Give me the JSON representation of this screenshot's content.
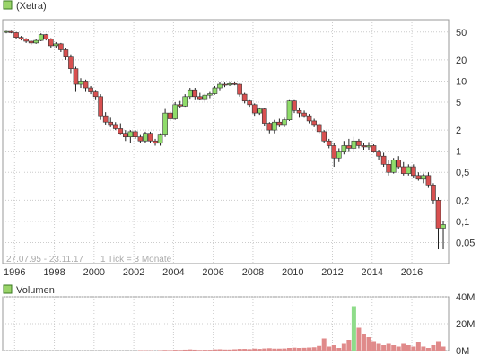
{
  "legend_top": {
    "label": "(Xetra)",
    "color": "#9ad46a"
  },
  "legend_bottom": {
    "label": "Volumen",
    "color": "#9ad46a"
  },
  "colors": {
    "up": "#8fdc6a",
    "down": "#d85050",
    "wick": "#202020",
    "grid": "#cccccc",
    "vol_red": "#e08a8a",
    "vol_green": "#8fdc8a"
  },
  "chart_data": [
    {
      "type": "candlestick",
      "scale": "log",
      "period_label": "27.07.95 - 23.11.17",
      "tick_note": "1 Tick = 3 Monate",
      "x_tick_labels": [
        "1996",
        "1998",
        "2000",
        "2002",
        "2004",
        "2006",
        "2008",
        "2010",
        "2012",
        "2014",
        "2016"
      ],
      "y_tick_labels": [
        "50",
        "20",
        "10",
        "5",
        "2",
        "1",
        "0,5",
        "0,2",
        "0,1",
        "0,05"
      ],
      "ylim": [
        0.025,
        75
      ],
      "grid": true,
      "candles": [
        [
          1995.58,
          50,
          52,
          48,
          51
        ],
        [
          1995.83,
          51,
          52,
          48,
          49
        ],
        [
          1996.08,
          49,
          50,
          40,
          42
        ],
        [
          1996.33,
          42,
          44,
          38,
          40
        ],
        [
          1996.58,
          40,
          41,
          35,
          37
        ],
        [
          1996.83,
          37,
          38,
          33,
          35
        ],
        [
          1997.08,
          35,
          40,
          34,
          38
        ],
        [
          1997.33,
          38,
          48,
          37,
          46
        ],
        [
          1997.58,
          46,
          47,
          38,
          40
        ],
        [
          1997.83,
          40,
          41,
          30,
          32
        ],
        [
          1998.08,
          32,
          36,
          30,
          34
        ],
        [
          1998.33,
          34,
          35,
          26,
          28
        ],
        [
          1998.58,
          28,
          30,
          20,
          22
        ],
        [
          1998.83,
          22,
          24,
          13,
          15
        ],
        [
          1999.08,
          15,
          16,
          7,
          9
        ],
        [
          1999.33,
          9,
          11,
          8,
          10
        ],
        [
          1999.58,
          10,
          10.5,
          7,
          8
        ],
        [
          1999.83,
          8,
          8.5,
          6.5,
          7
        ],
        [
          2000.08,
          7,
          7.5,
          5.5,
          6
        ],
        [
          2000.33,
          6,
          6.5,
          2.8,
          3.2
        ],
        [
          2000.58,
          3.2,
          3.6,
          2.4,
          2.6
        ],
        [
          2000.83,
          2.6,
          3,
          2.2,
          2.4
        ],
        [
          2001.08,
          2.4,
          2.6,
          2,
          2.1
        ],
        [
          2001.33,
          2.1,
          2.5,
          1.7,
          1.8
        ],
        [
          2001.58,
          1.8,
          2,
          1.4,
          1.6
        ],
        [
          2001.83,
          1.6,
          2,
          1.3,
          1.9
        ],
        [
          2002.08,
          1.9,
          2,
          1.5,
          1.6
        ],
        [
          2002.33,
          1.6,
          1.7,
          1.3,
          1.4
        ],
        [
          2002.58,
          1.4,
          1.9,
          1.3,
          1.8
        ],
        [
          2002.83,
          1.8,
          1.9,
          1.3,
          1.4
        ],
        [
          2003.08,
          1.4,
          1.5,
          1.2,
          1.3
        ],
        [
          2003.33,
          1.3,
          1.8,
          1.2,
          1.7
        ],
        [
          2003.58,
          1.7,
          4,
          1.6,
          3.5
        ],
        [
          2003.83,
          3.5,
          3.7,
          2.7,
          2.9
        ],
        [
          2004.08,
          2.9,
          5,
          2.8,
          4.6
        ],
        [
          2004.33,
          4.6,
          5.2,
          4.1,
          4.4
        ],
        [
          2004.58,
          4.4,
          6.5,
          4.3,
          6
        ],
        [
          2004.83,
          6,
          8,
          5.6,
          7.5
        ],
        [
          2005.08,
          7.5,
          8,
          5.5,
          6
        ],
        [
          2005.33,
          6,
          6.8,
          5.3,
          5.6
        ],
        [
          2005.58,
          5.6,
          6.6,
          4.9,
          6.3
        ],
        [
          2005.83,
          6.3,
          7,
          5.7,
          6.6
        ],
        [
          2006.08,
          6.6,
          8.5,
          6.4,
          8
        ],
        [
          2006.33,
          8,
          9.6,
          7.4,
          9
        ],
        [
          2006.58,
          9,
          9.5,
          8.2,
          8.8
        ],
        [
          2006.83,
          8.8,
          9.5,
          8.5,
          9.2
        ],
        [
          2007.08,
          9.2,
          9.6,
          8.7,
          9
        ],
        [
          2007.33,
          9,
          9.2,
          6,
          6.5
        ],
        [
          2007.58,
          6.5,
          6.8,
          4.8,
          5.2
        ],
        [
          2007.83,
          5.2,
          5.5,
          4.3,
          4.6
        ],
        [
          2008.08,
          4.6,
          4.8,
          3.2,
          3.5
        ],
        [
          2008.33,
          3.5,
          4.2,
          3.3,
          4
        ],
        [
          2008.58,
          4,
          4.1,
          2.3,
          2.5
        ],
        [
          2008.83,
          2.5,
          2.6,
          1.8,
          2
        ],
        [
          2009.08,
          2,
          2.8,
          1.8,
          2.6
        ],
        [
          2009.33,
          2.6,
          2.9,
          2.2,
          2.4
        ],
        [
          2009.58,
          2.4,
          3,
          2.2,
          2.8
        ],
        [
          2009.83,
          2.8,
          5.5,
          2.7,
          5.2
        ],
        [
          2010.08,
          5.2,
          5.5,
          3.5,
          3.8
        ],
        [
          2010.33,
          3.8,
          4.2,
          3,
          3.5
        ],
        [
          2010.58,
          3.5,
          3.8,
          3,
          3.2
        ],
        [
          2010.83,
          3.2,
          3.4,
          2.5,
          2.7
        ],
        [
          2011.08,
          2.7,
          2.9,
          2.2,
          2.4
        ],
        [
          2011.33,
          2.4,
          2.5,
          1.8,
          1.9
        ],
        [
          2011.58,
          1.9,
          2,
          1.3,
          1.4
        ],
        [
          2011.83,
          1.4,
          1.5,
          1.1,
          1.2
        ],
        [
          2012.08,
          1.2,
          1.3,
          0.6,
          0.8
        ],
        [
          2012.33,
          0.8,
          1.1,
          0.7,
          1
        ],
        [
          2012.58,
          1,
          1.4,
          0.9,
          1.2
        ],
        [
          2012.83,
          1.2,
          1.5,
          1,
          1.1
        ],
        [
          2013.08,
          1.1,
          1.6,
          1,
          1.4
        ],
        [
          2013.33,
          1.4,
          1.5,
          1.1,
          1.2
        ],
        [
          2013.58,
          1.2,
          1.3,
          1.05,
          1.15
        ],
        [
          2013.83,
          1.15,
          1.35,
          1.05,
          1.2
        ],
        [
          2014.08,
          1.2,
          1.25,
          0.95,
          1
        ],
        [
          2014.33,
          1,
          1.05,
          0.75,
          0.85
        ],
        [
          2014.58,
          0.85,
          0.95,
          0.6,
          0.65
        ],
        [
          2014.83,
          0.65,
          0.75,
          0.45,
          0.5
        ],
        [
          2015.08,
          0.5,
          0.8,
          0.48,
          0.75
        ],
        [
          2015.33,
          0.75,
          0.85,
          0.55,
          0.6
        ],
        [
          2015.58,
          0.6,
          0.7,
          0.45,
          0.48
        ],
        [
          2015.83,
          0.48,
          0.65,
          0.45,
          0.6
        ],
        [
          2016.08,
          0.6,
          0.65,
          0.42,
          0.45
        ],
        [
          2016.33,
          0.45,
          0.5,
          0.38,
          0.4
        ],
        [
          2016.58,
          0.4,
          0.48,
          0.35,
          0.45
        ],
        [
          2016.83,
          0.45,
          0.5,
          0.3,
          0.33
        ],
        [
          2017.08,
          0.33,
          0.35,
          0.18,
          0.2
        ],
        [
          2017.33,
          0.2,
          0.22,
          0.04,
          0.08
        ],
        [
          2017.58,
          0.08,
          0.1,
          0.04,
          0.09
        ]
      ]
    },
    {
      "type": "bar",
      "series_name": "Volumen",
      "y_tick_labels": [
        "40M",
        "20M",
        "0M"
      ],
      "ylim": [
        0,
        40
      ],
      "bars": [
        [
          2002.33,
          0.3
        ],
        [
          2002.58,
          0.3
        ],
        [
          2002.83,
          0.2
        ],
        [
          2003.33,
          0.3
        ],
        [
          2003.58,
          0.5
        ],
        [
          2003.83,
          0.4
        ],
        [
          2004.08,
          0.6
        ],
        [
          2004.33,
          0.5
        ],
        [
          2004.58,
          0.7
        ],
        [
          2004.83,
          0.9
        ],
        [
          2005.08,
          0.7
        ],
        [
          2005.33,
          0.5
        ],
        [
          2005.58,
          0.6
        ],
        [
          2005.83,
          0.6
        ],
        [
          2006.08,
          0.9
        ],
        [
          2006.33,
          1
        ],
        [
          2006.58,
          0.8
        ],
        [
          2006.83,
          0.8
        ],
        [
          2007.08,
          1
        ],
        [
          2007.33,
          1.3
        ],
        [
          2007.58,
          1.3
        ],
        [
          2007.83,
          1.1
        ],
        [
          2008.08,
          1.5
        ],
        [
          2008.33,
          1.3
        ],
        [
          2008.58,
          1.6
        ],
        [
          2008.83,
          1.8
        ],
        [
          2009.08,
          1.5
        ],
        [
          2009.33,
          1.5
        ],
        [
          2009.58,
          1.6
        ],
        [
          2009.83,
          2
        ],
        [
          2010.08,
          2.2
        ],
        [
          2010.33,
          2
        ],
        [
          2010.58,
          2.1
        ],
        [
          2010.83,
          2.3
        ],
        [
          2011.08,
          2.5
        ],
        [
          2011.33,
          3.5
        ],
        [
          2011.58,
          9
        ],
        [
          2011.83,
          3
        ],
        [
          2012.08,
          4
        ],
        [
          2012.33,
          2
        ],
        [
          2012.58,
          5
        ],
        [
          2012.83,
          8
        ],
        [
          2013.08,
          33
        ],
        [
          2013.33,
          17
        ],
        [
          2013.58,
          12
        ],
        [
          2013.83,
          10
        ],
        [
          2014.08,
          7
        ],
        [
          2014.33,
          5
        ],
        [
          2014.58,
          4
        ],
        [
          2014.83,
          5
        ],
        [
          2015.08,
          4
        ],
        [
          2015.33,
          3
        ],
        [
          2015.58,
          5
        ],
        [
          2015.83,
          4
        ],
        [
          2016.08,
          3
        ],
        [
          2016.33,
          6
        ],
        [
          2016.58,
          3
        ],
        [
          2016.83,
          2
        ],
        [
          2017.08,
          4
        ],
        [
          2017.33,
          7
        ],
        [
          2017.58,
          3
        ]
      ]
    }
  ]
}
